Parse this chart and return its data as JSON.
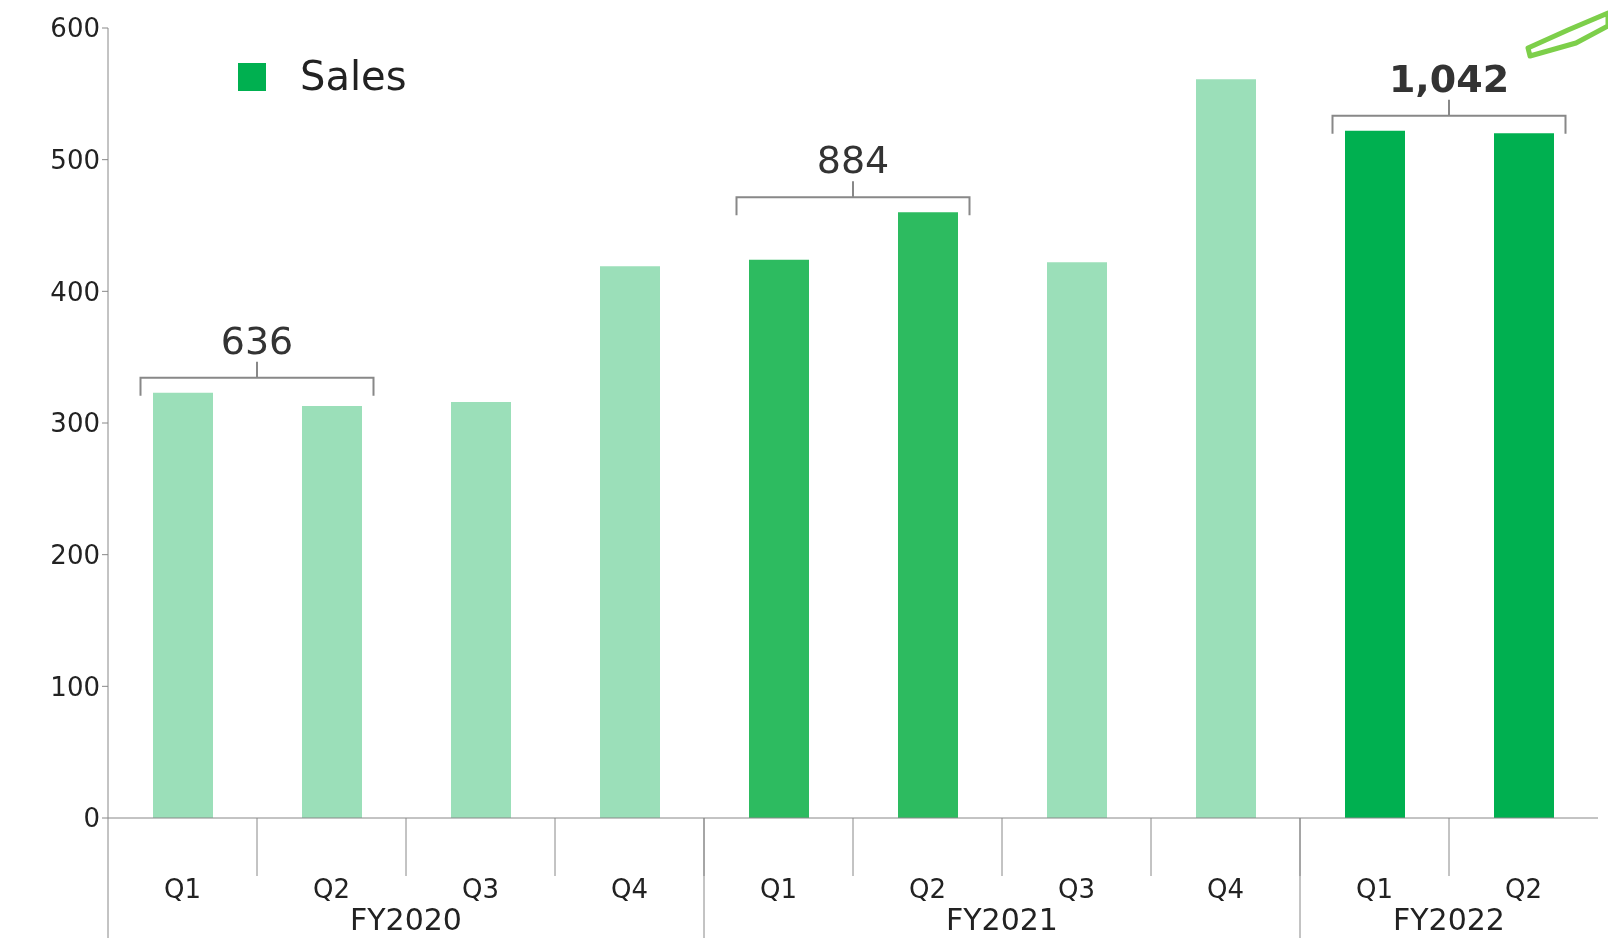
{
  "chart_data": {
    "type": "bar",
    "categories": [
      "Q1",
      "Q2",
      "Q3",
      "Q4",
      "Q1",
      "Q2",
      "Q3",
      "Q4",
      "Q1",
      "Q2"
    ],
    "series": [
      {
        "name": "Sales",
        "color": "#00b050",
        "values": [
          323,
          313,
          316,
          419,
          424,
          460,
          422,
          561,
          522,
          520
        ],
        "colors": [
          "#9bdfb9",
          "#9bdfb9",
          "#9bdfb9",
          "#9bdfb9",
          "#2dbb60",
          "#2dbb60",
          "#9bdfb9",
          "#9bdfb9",
          "#00b050",
          "#00b050"
        ]
      }
    ],
    "ylim": [
      0,
      600
    ],
    "yticks": [
      0,
      100,
      200,
      300,
      400,
      500,
      600
    ],
    "grid": false,
    "legend": "top left",
    "annotations": [
      "636",
      "884",
      "1,042",
      "FY2020",
      "FY2021",
      "FY2022"
    ]
  }
}
